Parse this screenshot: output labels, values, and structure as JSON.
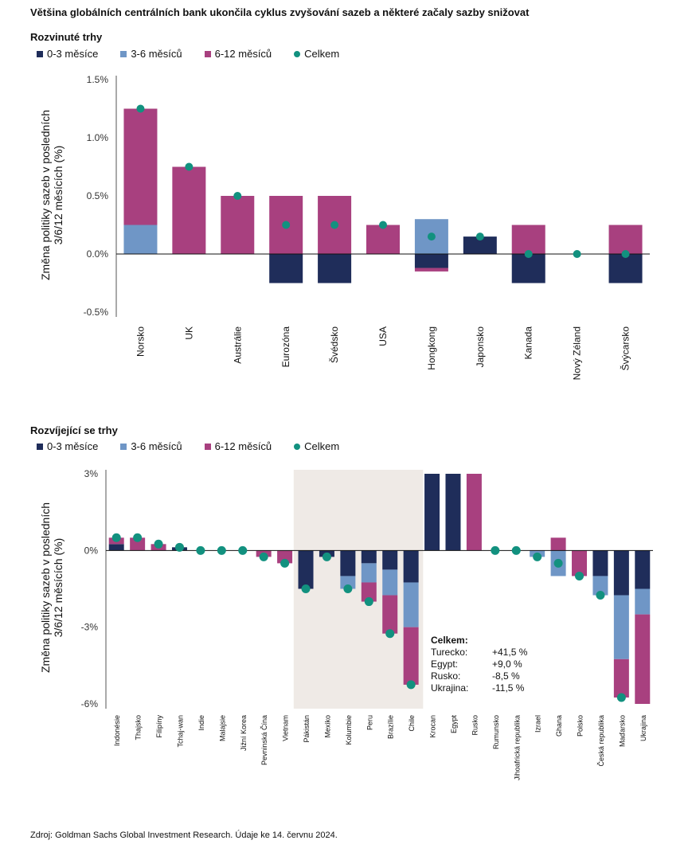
{
  "title": "Většina globálních centrálních bank ukončila cyklus zvyšování sazeb a některé začaly sazby snižovat",
  "source": "Zdroj: Goldman Sachs Global Investment Research. Údaje ke 14. červnu 2024.",
  "colors": {
    "m0_3": "#1f2d5a",
    "m3_6": "#6f96c6",
    "m6_12": "#a8407f",
    "total": "#12917f",
    "highlight": "#efeae6"
  },
  "legend": {
    "m0_3": "0-3 měsíce",
    "m3_6": "3-6 měsíců",
    "m6_12": "6-12 měsíců",
    "total": "Celkem"
  },
  "chart_data": [
    {
      "type": "bar",
      "title": "Rozvinuté trhy",
      "ylabel": "Změna politiky sazeb v posledních 3/6/12 měsících (%)",
      "ylim": [
        -0.5,
        1.5
      ],
      "yticks": [
        "1.5%",
        "1.0%",
        "0.5%",
        "0.0%",
        "-0.5%"
      ],
      "ytick_values": [
        1.5,
        1.0,
        0.5,
        0.0,
        -0.5
      ],
      "categories": [
        "Norsko",
        "UK",
        "Austrálie",
        "Eurozóna",
        "Švédsko",
        "USA",
        "Hongkong",
        "Japonsko",
        "Kanada",
        "Nový Zéland",
        "Švýcarsko"
      ],
      "series": [
        {
          "name": "0-3 měsíce",
          "values": [
            0,
            0,
            0,
            -0.25,
            -0.25,
            0,
            -0.12,
            0.15,
            -0.25,
            0,
            -0.25
          ]
        },
        {
          "name": "3-6 měsíců",
          "values": [
            0.25,
            0,
            0,
            0,
            0,
            0,
            0.3,
            0,
            0,
            0,
            0
          ]
        },
        {
          "name": "6-12 měsíců",
          "values": [
            1.0,
            0.75,
            0.5,
            0.5,
            0.5,
            0.25,
            -0.03,
            0,
            0.25,
            0,
            0.25
          ]
        }
      ],
      "totals": [
        1.25,
        0.75,
        0.5,
        0.25,
        0.25,
        0.25,
        0.15,
        0.15,
        0.0,
        0.0,
        0.0
      ]
    },
    {
      "type": "bar",
      "title": "Rozvíjející se trhy",
      "ylabel": "Změna politiky sazeb v posledních 3/6/12 měsících (%)",
      "ylim": [
        -6,
        3
      ],
      "yticks": [
        "3%",
        "0%",
        "-3%",
        "-6%"
      ],
      "ytick_values": [
        3,
        0,
        -3,
        -6
      ],
      "categories": [
        "Indonésie",
        "Thajsko",
        "Filipíny",
        "Tchaj-wan",
        "Indie",
        "Malajsie",
        "Jižní Korea",
        "Pevninská Čína",
        "Vietnam",
        "Pákistán",
        "Mexiko",
        "Kolumbie",
        "Peru",
        "Brazílie",
        "Chile",
        "Krocan",
        "Egypt",
        "Rusko",
        "Rumunsko",
        "Jihoafrická republika",
        "Izrael",
        "Ghana",
        "Polsko",
        "Česká republika",
        "Maďarsko",
        "Ukrajina"
      ],
      "series": [
        {
          "name": "0-3 měsíce",
          "values": [
            0.25,
            0,
            0,
            0.125,
            0,
            0,
            0,
            0,
            0,
            -1.5,
            -0.25,
            -1.0,
            -0.5,
            -0.75,
            -1.25,
            3.0,
            3.0,
            0,
            0,
            0,
            0,
            0,
            0,
            -1.0,
            -1.75,
            -1.5
          ]
        },
        {
          "name": "3-6 měsíců",
          "values": [
            0,
            0,
            0,
            0,
            0,
            0,
            0,
            0,
            0,
            0,
            0,
            -0.5,
            -0.75,
            -1.0,
            -1.75,
            0,
            0,
            0,
            0,
            0,
            -0.25,
            -1.0,
            0,
            -0.75,
            -2.5,
            -1.0
          ]
        },
        {
          "name": "6-12 měsíců",
          "values": [
            0.25,
            0.5,
            0.25,
            0,
            0,
            0,
            0,
            -0.25,
            -0.5,
            0,
            0,
            0,
            -0.75,
            -1.5,
            -2.25,
            0,
            0,
            3.0,
            0,
            0,
            0,
            0.5,
            -1.0,
            0,
            -1.5,
            -3.5
          ]
        }
      ],
      "totals": [
        0.5,
        0.5,
        0.25,
        0.125,
        0,
        0,
        0,
        -0.25,
        -0.5,
        -1.5,
        -0.25,
        -1.5,
        -2.0,
        -3.25,
        -5.25,
        41.5,
        9.0,
        -8.5,
        0,
        0,
        -0.25,
        -0.5,
        -1.0,
        -1.75,
        -5.75,
        -11.5
      ],
      "highlight_range": [
        "Pákistán",
        "Chile"
      ],
      "note": {
        "heading": "Celkem:",
        "rows": [
          {
            "label": "Turecko:",
            "value": "+41,5 %"
          },
          {
            "label": "Egypt:",
            "value": "+9,0 %"
          },
          {
            "label": "Rusko:",
            "value": "-8,5 %"
          },
          {
            "label": "Ukrajina:",
            "value": "-11,5 %"
          }
        ]
      }
    }
  ]
}
